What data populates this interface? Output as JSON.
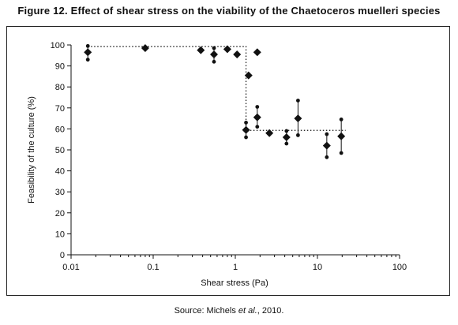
{
  "chart_data": {
    "type": "scatter",
    "title": "Figure 12. Effect of shear stress on the viability of the Chaetoceros muelleri species",
    "xlabel": "Shear stress (Pa)",
    "ylabel": "Feasibility of the culture (%)",
    "x_scale": "log",
    "xlim": [
      0.01,
      100
    ],
    "ylim": [
      0,
      100
    ],
    "x_ticks": [
      0.01,
      0.1,
      1,
      10,
      100
    ],
    "x_tick_labels": [
      "0.01",
      "0.1",
      "1",
      "10",
      "100"
    ],
    "y_ticks": [
      0,
      10,
      20,
      30,
      40,
      50,
      60,
      70,
      80,
      90,
      100
    ],
    "y_tick_labels": [
      "0",
      "10",
      "20",
      "30",
      "40",
      "50",
      "60",
      "70",
      "80",
      "90",
      "100"
    ],
    "grid": false,
    "legend": "none",
    "marker_color": "#111111",
    "points": [
      {
        "x": 0.016,
        "y": 96.5,
        "err_low": 93,
        "err_high": 99.5
      },
      {
        "x": 0.08,
        "y": 98.5
      },
      {
        "x": 0.38,
        "y": 97.5
      },
      {
        "x": 0.55,
        "y": 95.5,
        "err_low": 92,
        "err_high": 98.5
      },
      {
        "x": 0.8,
        "y": 98
      },
      {
        "x": 1.05,
        "y": 95.5
      },
      {
        "x": 1.35,
        "y": 59.5,
        "err_low": 56,
        "err_high": 63
      },
      {
        "x": 1.45,
        "y": 85.5
      },
      {
        "x": 1.85,
        "y": 96.5
      },
      {
        "x": 1.85,
        "y": 65.5,
        "err_low": 61,
        "err_high": 70.5
      },
      {
        "x": 2.6,
        "y": 58
      },
      {
        "x": 4.2,
        "y": 56,
        "err_low": 53,
        "err_high": 59
      },
      {
        "x": 5.8,
        "y": 65,
        "err_low": 57,
        "err_high": 73.5
      },
      {
        "x": 13,
        "y": 52,
        "err_low": 46.5,
        "err_high": 57.5
      },
      {
        "x": 19.5,
        "y": 56.5,
        "err_low": 48.5,
        "err_high": 64.5
      }
    ],
    "fit_line": {
      "style": "dotted",
      "points": [
        [
          0.016,
          99.3
        ],
        [
          1.35,
          99.3
        ],
        [
          1.35,
          59.3
        ],
        [
          22,
          59.3
        ]
      ]
    }
  },
  "source": {
    "prefix": "Source: Michels ",
    "italic": "et al.",
    "suffix": ", 2010."
  }
}
